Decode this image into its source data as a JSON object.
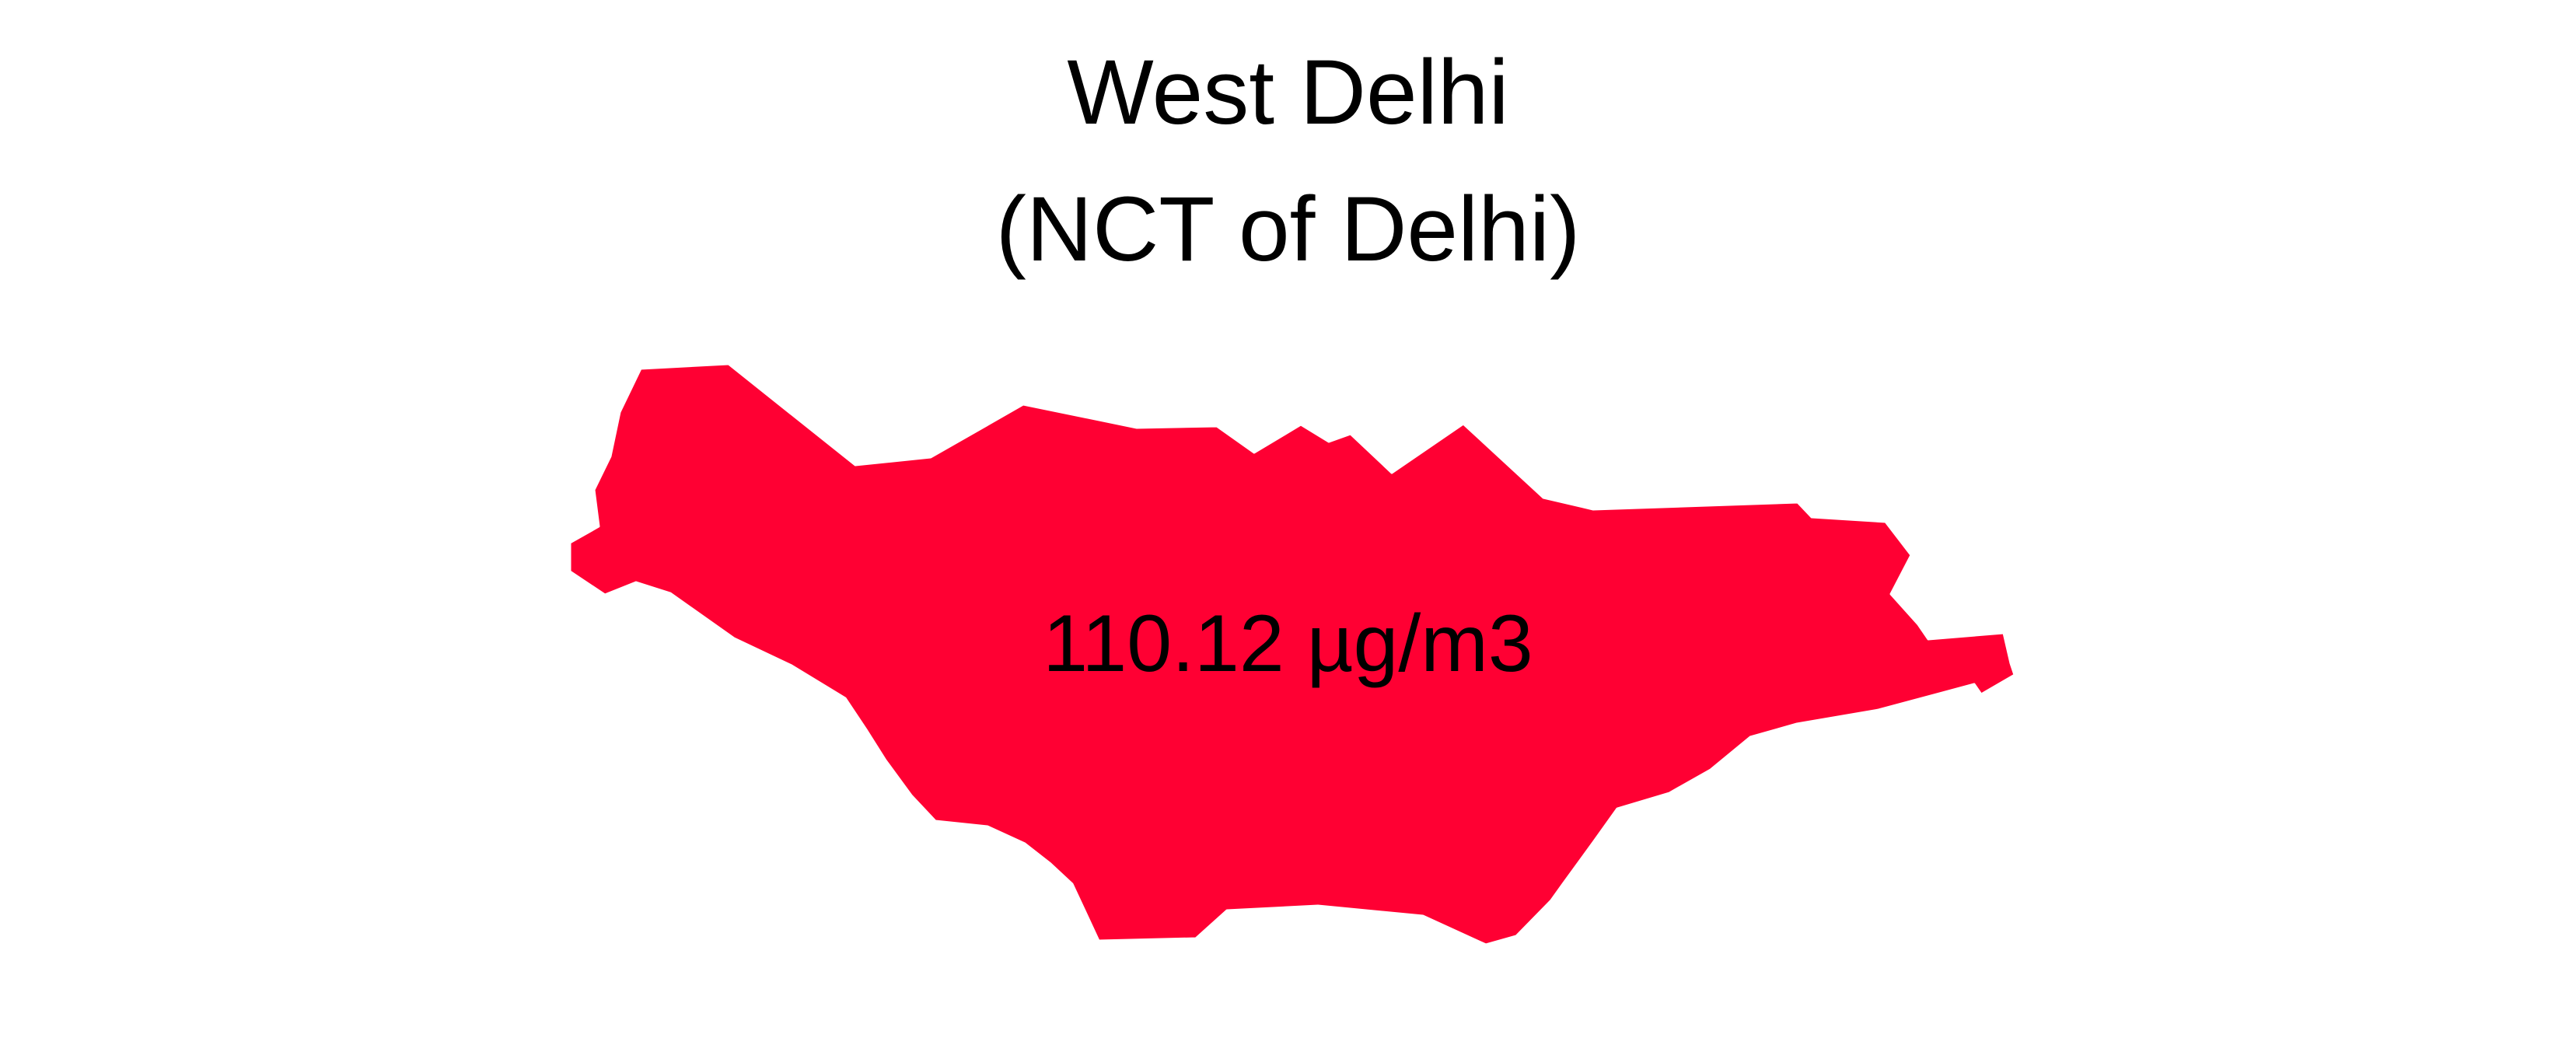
{
  "title": {
    "line1": "West Delhi",
    "line2": "(NCT of Delhi)"
  },
  "region": {
    "value_label": "110.12 µg/m3",
    "fill_color": "#ff0033",
    "stroke_color": "#ffffff"
  }
}
